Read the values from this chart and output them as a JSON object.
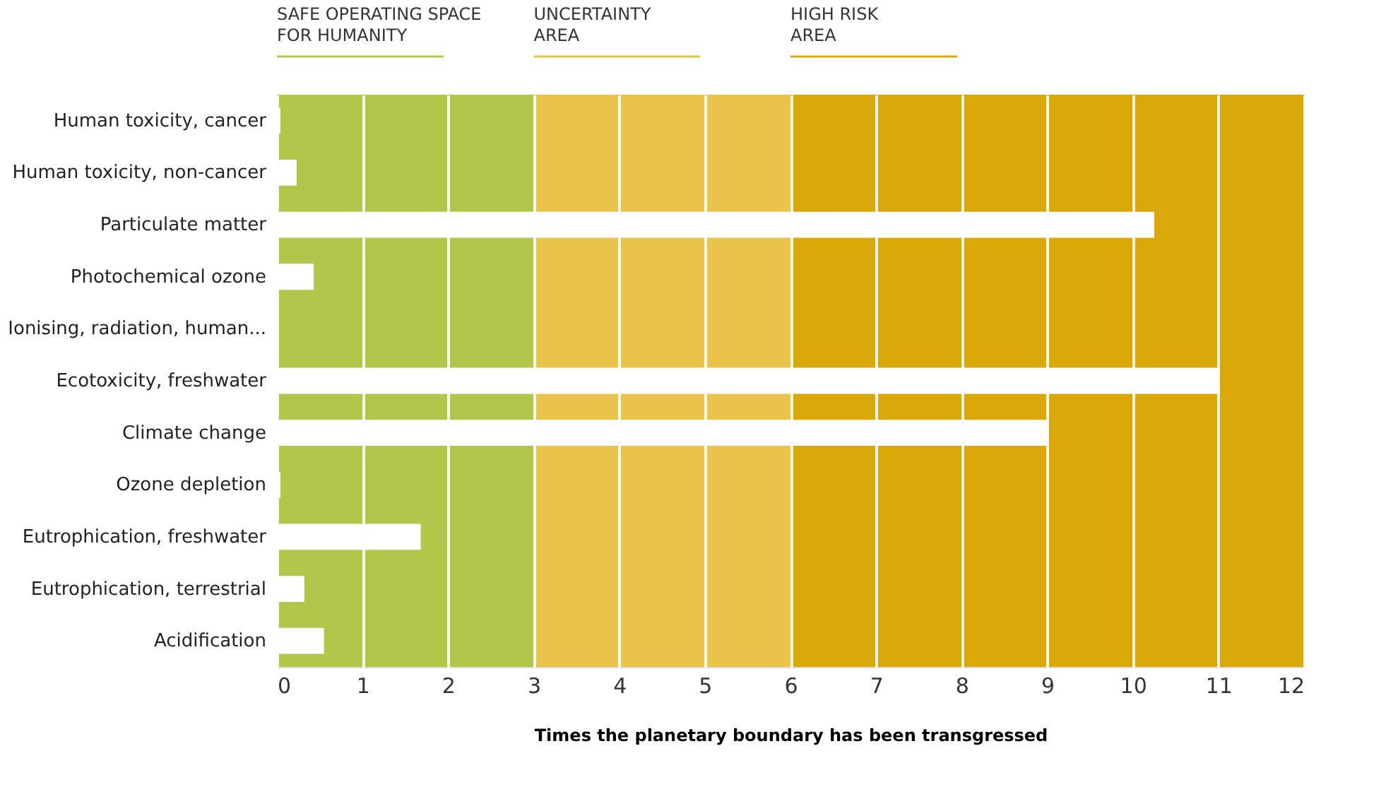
{
  "chart_data": {
    "type": "bar",
    "orientation": "horizontal",
    "xlabel": "Times the planetary boundary has been transgressed",
    "categories": [
      "Human toxicity, cancer",
      "Human toxicity, non-cancer",
      "Particulate matter",
      "Photochemical ozone",
      "Ionising, radiation, human...",
      "Ecotoxicity, freshwater",
      "Climate change",
      "Ozone depletion",
      "Eutrophication, freshwater",
      "Eutrophication, terrestrial",
      "Acidification"
    ],
    "values": [
      0.04,
      0.23,
      10.25,
      0.43,
      0,
      11.0,
      9.0,
      0.04,
      1.68,
      0.32,
      0.55
    ],
    "color": "#ffffff",
    "xlim": [
      0,
      12
    ],
    "xticks": [
      0,
      1,
      2,
      3,
      4,
      5,
      6,
      7,
      8,
      9,
      10,
      11,
      12
    ],
    "grid": "x",
    "bands": [
      {
        "axis": "x",
        "from": 0,
        "to": 3,
        "label": "SAFE OPERATING SPACE\nFOR HUMANITY",
        "color": "#b4c64a"
      },
      {
        "axis": "x",
        "from": 3,
        "to": 6,
        "label": "UNCERTAINTY\nAREA",
        "color": "#e9c34a"
      },
      {
        "axis": "x",
        "from": 6,
        "to": 12,
        "label": "HIGH RISK\nAREA",
        "color": "#dba80a"
      }
    ]
  }
}
